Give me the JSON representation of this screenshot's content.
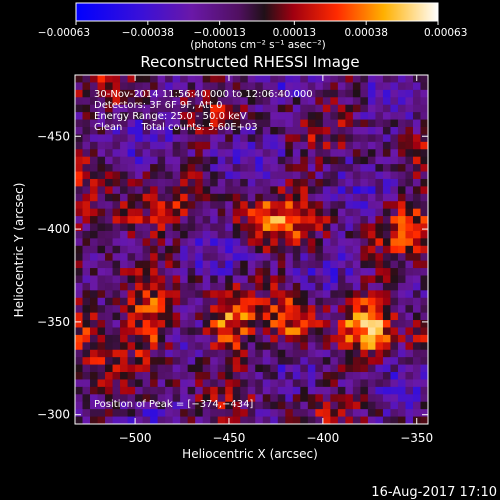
{
  "chart_data": {
    "type": "heatmap",
    "title": "Reconstructed RHESSI Image",
    "xlabel": "Heliocentric X (arcsec)",
    "ylabel": "Heliocentric Y (arcsec)",
    "xlim": [
      -532,
      -344
    ],
    "ylim": [
      -483,
      -295
    ],
    "x_ticks": [
      -500,
      -450,
      -400,
      -350
    ],
    "x_tick_labels": [
      "−500",
      "−450",
      "−400",
      "−350"
    ],
    "y_ticks": [
      -300,
      -350,
      -400,
      -450
    ],
    "y_tick_labels": [
      "−300",
      "−350",
      "−400",
      "−450"
    ],
    "colorbar": {
      "min": -0.00063,
      "max": 0.00063,
      "ticks": [
        -0.00063,
        -0.00038,
        -0.00013,
        0.00013,
        0.00038,
        0.00063
      ],
      "tick_labels": [
        "−0.00063",
        "−0.00038",
        "−0.00013",
        "0.00013",
        "0.00038",
        "0.00063"
      ],
      "units_label": "(photons cm⁻² s⁻¹ asec⁻²)"
    },
    "annotations": [
      "30-Nov-2014 11:56:40.000 to 12:06:40.000",
      "Detectors: 3F 6F 9F, Att 0",
      "Energy Range: 25.0 - 50.0 keV",
      "Clean      Total counts: 5.60E+03"
    ],
    "peak_label": "Position of Peak = [−374,−434]",
    "peak_position": [
      -374,
      -434
    ],
    "grid": false
  },
  "footer": {
    "timestamp": "16-Aug-2017 17:10"
  }
}
